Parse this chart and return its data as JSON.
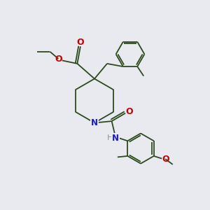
{
  "background_color": "#e8eaf0",
  "bond_color": "#2d4a1e",
  "N_color": "#1a1acc",
  "O_color": "#cc0000",
  "H_color": "#909090",
  "line_width": 1.3,
  "fig_width": 3.0,
  "fig_height": 3.0,
  "dpi": 100,
  "xlim": [
    0,
    10
  ],
  "ylim": [
    0,
    10
  ]
}
